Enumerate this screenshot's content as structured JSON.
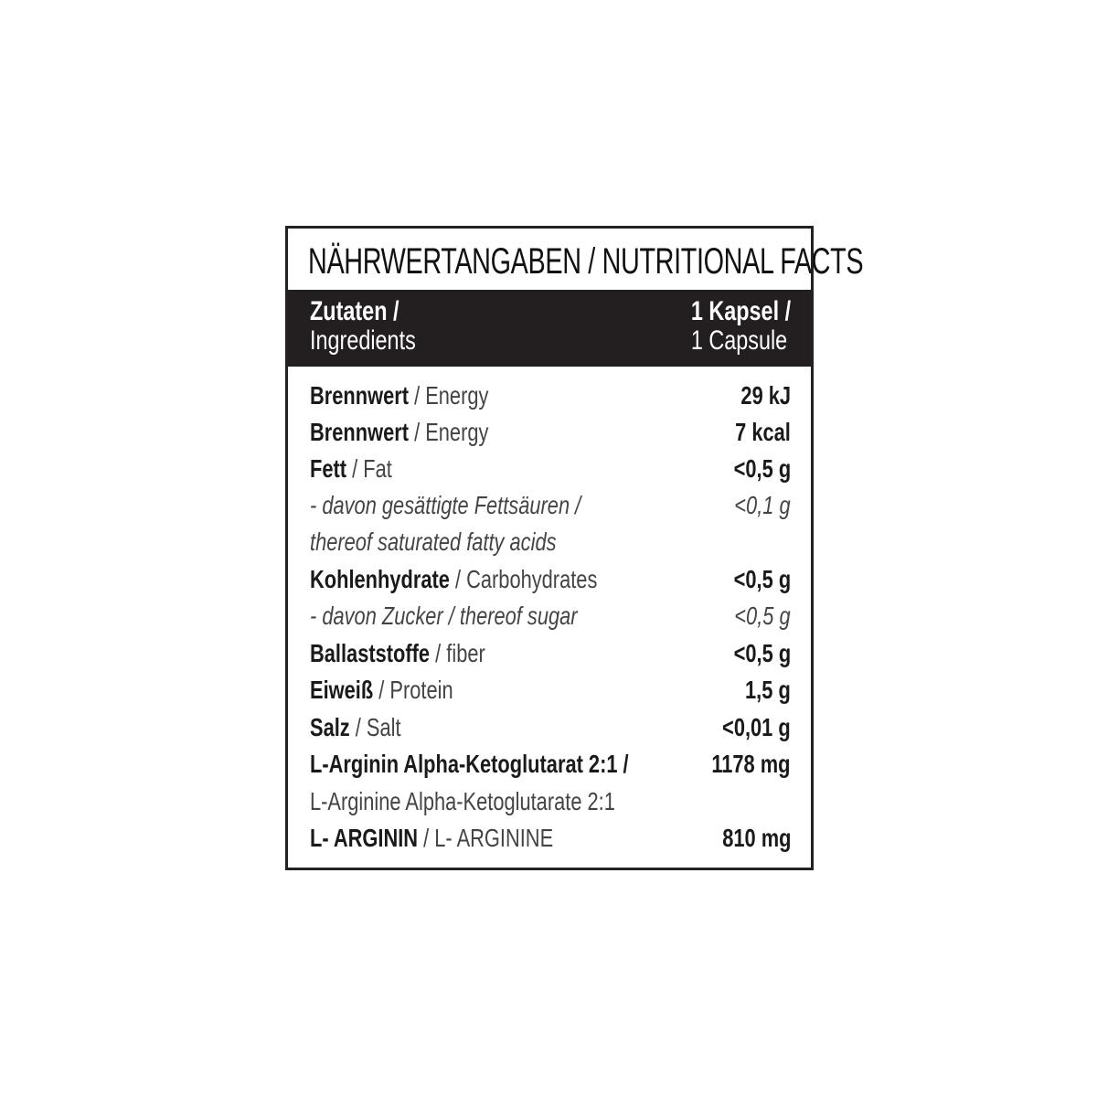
{
  "title": "NÄHRWERTANGABEN / NUTRITIONAL FACTS",
  "header": {
    "left_de": "Zutaten /",
    "left_en": "Ingredients",
    "right_de": "1 Kapsel /",
    "right_en": "1 Capsule"
  },
  "colors": {
    "border": "#222222",
    "header_bg": "#231f20",
    "header_text": "#ffffff"
  },
  "rows": [
    {
      "de": "Brennwert",
      "en": " / Energy",
      "value": "29 kJ",
      "style": "normal"
    },
    {
      "de": "Brennwert",
      "en": " / Energy",
      "value": "7 kcal",
      "style": "normal"
    },
    {
      "de": "Fett",
      "en": " / Fat",
      "value": "<0,5 g",
      "style": "normal"
    },
    {
      "de": "",
      "en": "- davon gesättigte Fettsäuren /",
      "value": "<0,1 g",
      "style": "italic"
    },
    {
      "de": "",
      "en": " thereof saturated fatty acids",
      "value": "",
      "style": "italic"
    },
    {
      "de": "Kohlenhydrate",
      "en": " / Carbohydrates",
      "value": "<0,5 g",
      "style": "normal"
    },
    {
      "de": "",
      "en": "- davon Zucker / thereof sugar",
      "value": "<0,5 g",
      "style": "italic"
    },
    {
      "de": "Ballaststoffe",
      "en": " / fiber",
      "value": "<0,5 g",
      "style": "normal"
    },
    {
      "de": "Eiweiß",
      "en": " / Protein",
      "value": "1,5 g",
      "style": "normal"
    },
    {
      "de": "Salz",
      "en": " / Salt",
      "value": "<0,01 g",
      "style": "normal"
    },
    {
      "de": "L-Arginin Alpha-Ketoglutarat 2:1 /",
      "en": "",
      "value": "1178 mg",
      "style": "normal"
    },
    {
      "de": "",
      "en": "L-Arginine Alpha-Ketoglutarate 2:1",
      "value": "",
      "style": "sub"
    },
    {
      "de": "L- ARGININ",
      "en": " / L- ARGININE",
      "value": "810 mg",
      "style": "normal"
    }
  ]
}
